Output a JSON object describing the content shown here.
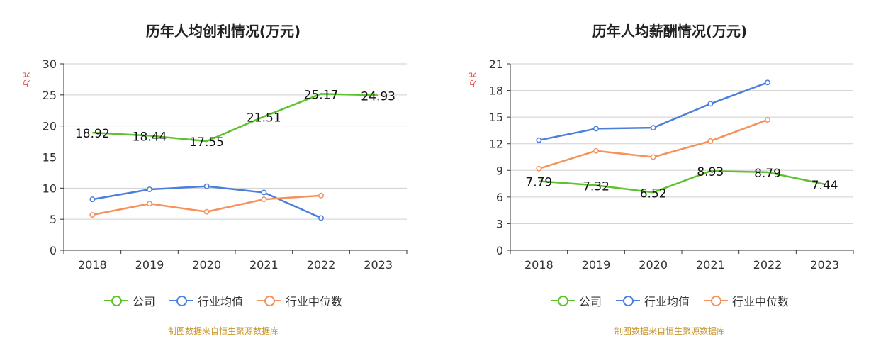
{
  "colors": {
    "company": "#5cc22e",
    "industry_avg": "#4a7fdb",
    "industry_median": "#f5915a",
    "unit": "#e53935",
    "source": "#c8962e"
  },
  "legend": {
    "company": "公司",
    "industry_avg": "行业均值",
    "industry_median": "行业中位数"
  },
  "source_text": "制图数据来自恒生聚源数据库",
  "chart_data": [
    {
      "type": "line",
      "title": "历年人均创利情况(万元)",
      "ylabel": "万元",
      "categories": [
        "2018",
        "2019",
        "2020",
        "2021",
        "2022",
        "2023"
      ],
      "ylim": [
        0,
        30
      ],
      "yticks": [
        0,
        5,
        10,
        15,
        20,
        25,
        30
      ],
      "series": [
        {
          "key": "company",
          "name": "公司",
          "values": [
            18.92,
            18.44,
            17.55,
            21.51,
            25.17,
            24.93
          ],
          "labels": [
            "18.92",
            "18.44",
            "17.55",
            "21.51",
            "25.17",
            "24.93"
          ]
        },
        {
          "key": "industry_avg",
          "name": "行业均值",
          "values": [
            8.2,
            9.8,
            10.3,
            9.3,
            5.2,
            null
          ]
        },
        {
          "key": "industry_median",
          "name": "行业中位数",
          "values": [
            5.7,
            7.5,
            6.2,
            8.2,
            8.8,
            null
          ]
        }
      ]
    },
    {
      "type": "line",
      "title": "历年人均薪酬情况(万元)",
      "ylabel": "万元",
      "categories": [
        "2018",
        "2019",
        "2020",
        "2021",
        "2022",
        "2023"
      ],
      "ylim": [
        0,
        21
      ],
      "yticks": [
        0,
        3,
        6,
        9,
        12,
        15,
        18,
        21
      ],
      "series": [
        {
          "key": "company",
          "name": "公司",
          "values": [
            7.79,
            7.32,
            6.52,
            8.93,
            8.79,
            7.44
          ],
          "labels": [
            "7.79",
            "7.32",
            "6.52",
            "8.93",
            "8.79",
            "7.44"
          ]
        },
        {
          "key": "industry_avg",
          "name": "行业均值",
          "values": [
            12.4,
            13.7,
            13.8,
            16.5,
            18.9,
            null
          ]
        },
        {
          "key": "industry_median",
          "name": "行业中位数",
          "values": [
            9.2,
            11.2,
            10.5,
            12.3,
            14.7,
            null
          ]
        }
      ]
    }
  ]
}
